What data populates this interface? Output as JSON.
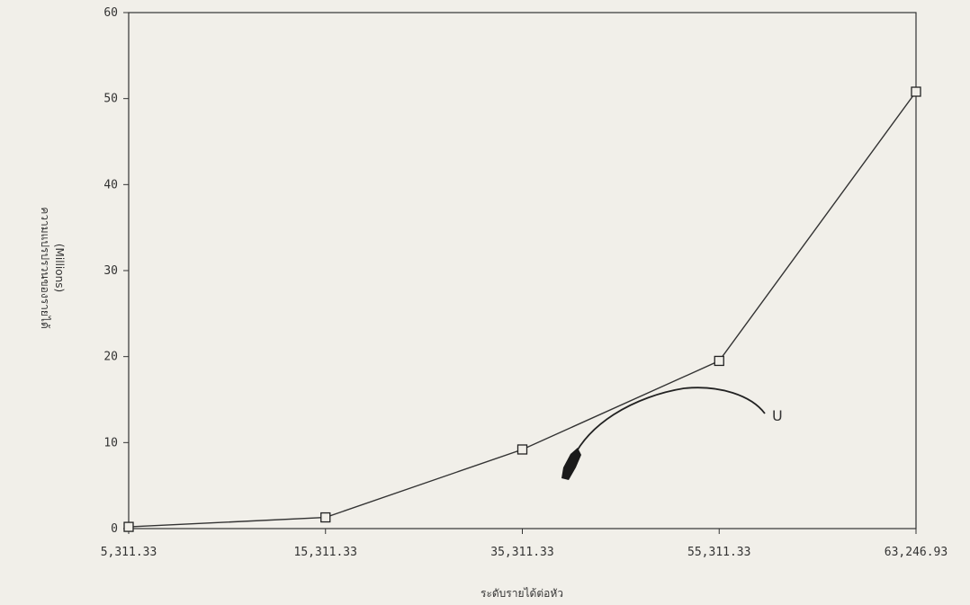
{
  "chart_data": {
    "type": "line",
    "title": "",
    "xlabel": "ระดับรายได้ต่อหัว",
    "ylabel": "ความแปรปรวนของรายได้",
    "ylabel_units": "(Millions)",
    "categories": [
      "5,311.33",
      "15,311.33",
      "35,311.33",
      "55,311.33",
      "63,246.93"
    ],
    "series": [
      {
        "name": "",
        "values": [
          0.2,
          1.3,
          9.2,
          19.5,
          50.8
        ]
      }
    ],
    "ylim": [
      0,
      60
    ],
    "yticks": [
      0,
      10,
      20,
      30,
      40,
      50,
      60
    ],
    "annotation": "U",
    "grid": false,
    "marker": "square",
    "line_color": "#333333"
  }
}
